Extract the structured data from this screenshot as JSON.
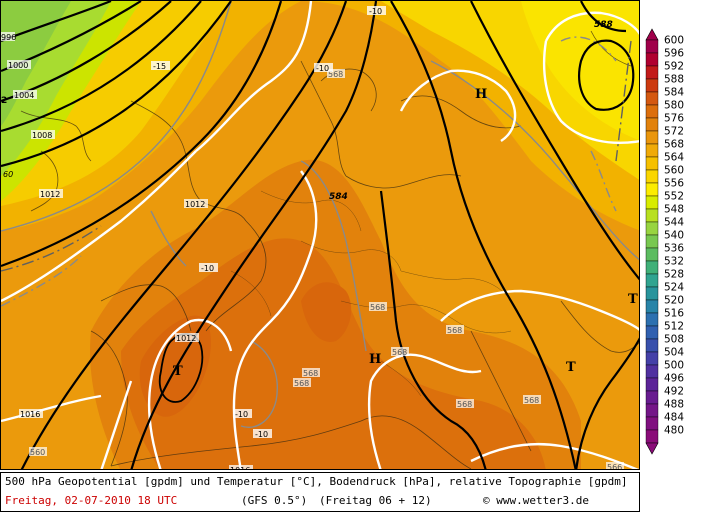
{
  "footer": {
    "description": "500 hPa Geopotential [gpdm] und Temperatur [°C], Bodendruck [hPa], relative Topographie [gpdm]",
    "date": "Freitag, 02-07-2010  18 UTC",
    "model": "(GFS 0.5°)",
    "run": "(Freitag 06 + 12)",
    "copyright": "© www.wetter3.de"
  },
  "legend": {
    "values": [
      "600",
      "596",
      "592",
      "588",
      "584",
      "580",
      "576",
      "572",
      "568",
      "564",
      "560",
      "556",
      "552",
      "548",
      "544",
      "540",
      "536",
      "532",
      "528",
      "524",
      "520",
      "516",
      "512",
      "508",
      "504",
      "500",
      "496",
      "492",
      "488",
      "484",
      "480"
    ],
    "colors": [
      "#a0004a",
      "#b00030",
      "#c21a1a",
      "#cc3a10",
      "#d45810",
      "#dc6e0c",
      "#e2820c",
      "#ea960c",
      "#f0aa08",
      "#f6c000",
      "#fad600",
      "#fcec00",
      "#d8ec00",
      "#b8e020",
      "#98d440",
      "#78c850",
      "#5cbc60",
      "#40b078",
      "#30a490",
      "#28949c",
      "#2884a8",
      "#2c70b0",
      "#3060b0",
      "#3850ac",
      "#4440a8",
      "#5030a0",
      "#5c2498",
      "#681c90",
      "#741688",
      "#801080",
      "#8a0c78"
    ],
    "top_arrow_color": "#a0004a",
    "bottom_arrow_color": "#8a0c78"
  },
  "map": {
    "pressure_systems": [
      {
        "symbol": "H",
        "kind": "high"
      },
      {
        "symbol": "H",
        "kind": "high"
      },
      {
        "symbol": "T",
        "kind": "low"
      },
      {
        "symbol": "T",
        "kind": "low"
      },
      {
        "symbol": "T",
        "kind": "low"
      }
    ],
    "geopotential_labels": [
      "588",
      "584",
      "568",
      "568",
      "568",
      "568",
      "568",
      "568",
      "568",
      "566",
      "568",
      "560"
    ],
    "pressure_labels": [
      "996",
      "1000",
      "1004",
      "1008",
      "1012",
      "1012",
      "1012",
      "1016",
      "1016",
      "1016"
    ],
    "temperature_labels": [
      "-10",
      "-10",
      "-15",
      "-10",
      "-10",
      "-10",
      "-10"
    ],
    "partial_labels": [
      "60",
      "2"
    ]
  }
}
